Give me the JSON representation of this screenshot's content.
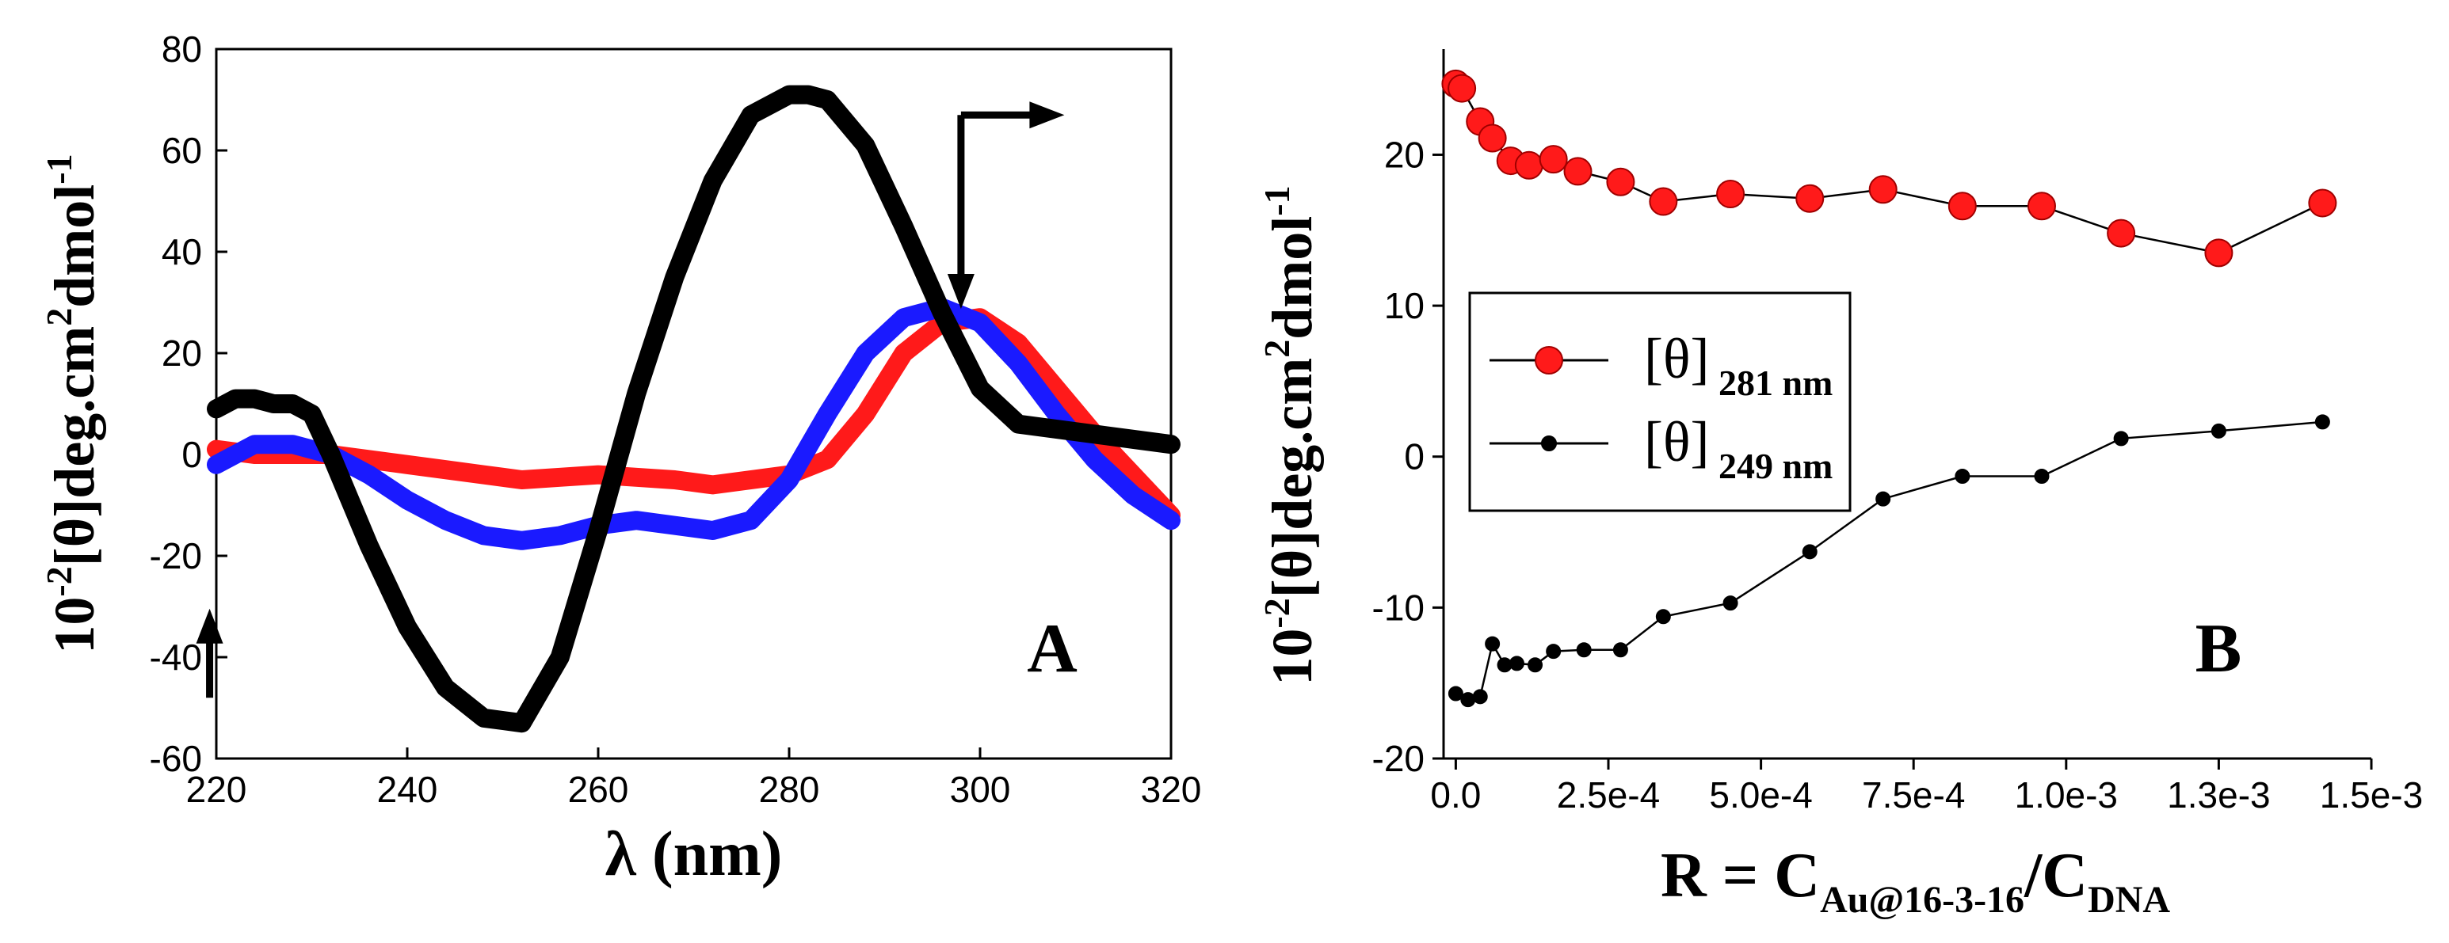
{
  "colors": {
    "red": "#ff1a1a",
    "blue": "#1a1aff",
    "black": "#000000"
  },
  "chart_data": [
    {
      "panel": "A",
      "type": "line",
      "title": "",
      "xlabel": "λ (nm)",
      "ylabel": {
        "base": "10",
        "sup1": "-2",
        "mid": "[θ]deg.cm",
        "sup2": "2",
        "tail": "dmol",
        "sup3": "-1"
      },
      "xlim": [
        220,
        320
      ],
      "ylim": [
        -60,
        80
      ],
      "xticks": [
        "220",
        "240",
        "260",
        "280",
        "300",
        "320"
      ],
      "yticks": [
        "-60",
        "-40",
        "-20",
        "0",
        "20",
        "40",
        "60",
        "80"
      ],
      "series": [
        {
          "name": "red",
          "color": "#ff1a1a",
          "x": [
            220,
            224,
            228,
            232,
            236,
            240,
            244,
            248,
            252,
            256,
            260,
            264,
            268,
            272,
            276,
            280,
            284,
            288,
            292,
            296,
            300,
            304,
            308,
            312,
            316,
            320
          ],
          "y": [
            1,
            0,
            0,
            0,
            -1,
            -2,
            -3,
            -4,
            -5,
            -4.5,
            -4,
            -4.5,
            -5,
            -6,
            -5,
            -4,
            -1,
            8,
            20,
            26,
            27,
            22,
            13,
            4,
            -4,
            -12
          ]
        },
        {
          "name": "blue",
          "color": "#1a1aff",
          "x": [
            220,
            224,
            228,
            232,
            236,
            240,
            244,
            248,
            252,
            256,
            260,
            264,
            268,
            272,
            276,
            280,
            284,
            288,
            292,
            296,
            300,
            304,
            308,
            312,
            316,
            320
          ],
          "y": [
            -2,
            2,
            2,
            0,
            -4,
            -9,
            -13,
            -16,
            -17,
            -16,
            -14,
            -13,
            -14,
            -15,
            -13,
            -5,
            8,
            20,
            27,
            29,
            26,
            18,
            8,
            -1,
            -8,
            -13
          ]
        },
        {
          "name": "black",
          "color": "#000000",
          "x": [
            220,
            222,
            224,
            226,
            228,
            230,
            232,
            236,
            240,
            244,
            248,
            252,
            256,
            260,
            264,
            268,
            272,
            276,
            280,
            282,
            284,
            288,
            292,
            296,
            300,
            304,
            308,
            312,
            316,
            320
          ],
          "y": [
            9,
            11,
            11,
            10,
            10,
            8,
            0,
            -18,
            -34,
            -46,
            -52,
            -53,
            -40,
            -15,
            12,
            35,
            54,
            67,
            71,
            71,
            70,
            61,
            45,
            28,
            13,
            6,
            5,
            4,
            3,
            2
          ]
        }
      ],
      "annotations": [
        {
          "type": "arrow-up",
          "x": 219.3,
          "y_from": -48,
          "y_to": -32
        },
        {
          "type": "elbow-arrow-right",
          "x": 298,
          "y": 67,
          "x_end": 308
        },
        {
          "type": "arrow-down",
          "x": 298,
          "y_from": 67,
          "y_to": 30
        }
      ]
    },
    {
      "panel": "B",
      "type": "line",
      "title": "",
      "xlabel": {
        "base": "R = C",
        "sub1": "Au@16-3-16",
        "mid": "/C",
        "sub2": "DNA"
      },
      "ylabel": {
        "base": "10",
        "sup1": "-2",
        "mid": "[θ]deg.cm",
        "sup2": "2",
        "tail": "dmol",
        "sup3": "-1"
      },
      "xlim": [
        -2e-05,
        0.0015
      ],
      "ylim": [
        -20,
        27
      ],
      "xticks": [
        {
          "v": 0,
          "label": "0.0"
        },
        {
          "v": 0.00025,
          "label": "2.5e-4"
        },
        {
          "v": 0.0005,
          "label": "5.0e-4"
        },
        {
          "v": 0.00075,
          "label": "7.5e-4"
        },
        {
          "v": 0.001,
          "label": "1.0e-3"
        },
        {
          "v": 0.00125,
          "label": "1.3e-3"
        },
        {
          "v": 0.0015,
          "label": "1.5e-3"
        }
      ],
      "yticks": [
        "-20",
        "-10",
        "0",
        "10",
        "20"
      ],
      "legend": {
        "position": "middle-left",
        "entries": [
          {
            "label": "[θ]",
            "sub": "281 nm"
          },
          {
            "label": "[θ]",
            "sub": "249 nm"
          }
        ]
      },
      "series": [
        {
          "name": "[θ] 281 nm",
          "color": "#ff1a1a",
          "marker": "large-circle",
          "x": [
            0,
            1e-05,
            4e-05,
            6e-05,
            9e-05,
            0.00012,
            0.00016,
            0.0002,
            0.00027,
            0.00034,
            0.00045,
            0.00058,
            0.0007,
            0.00083,
            0.00096,
            0.00109,
            0.00125,
            0.00142
          ],
          "y": [
            24.7,
            24.4,
            22.2,
            21.1,
            19.6,
            19.3,
            19.7,
            18.9,
            18.2,
            16.9,
            17.4,
            17.1,
            17.7,
            16.6,
            16.6,
            14.8,
            13.5,
            16.8
          ]
        },
        {
          "name": "[θ] 249 nm",
          "color": "#000000",
          "marker": "small-circle",
          "x": [
            0,
            2e-05,
            4e-05,
            6e-05,
            8e-05,
            0.0001,
            0.00013,
            0.00016,
            0.00021,
            0.00027,
            0.00034,
            0.00045,
            0.00058,
            0.0007,
            0.00083,
            0.00096,
            0.00109,
            0.00125,
            0.00142
          ],
          "y": [
            -15.7,
            -16.1,
            -15.9,
            -12.4,
            -13.8,
            -13.7,
            -13.8,
            -12.9,
            -12.8,
            -12.8,
            -10.6,
            -9.7,
            -6.3,
            -2.8,
            -1.3,
            -1.3,
            1.2,
            1.7,
            2.3
          ]
        }
      ]
    }
  ]
}
